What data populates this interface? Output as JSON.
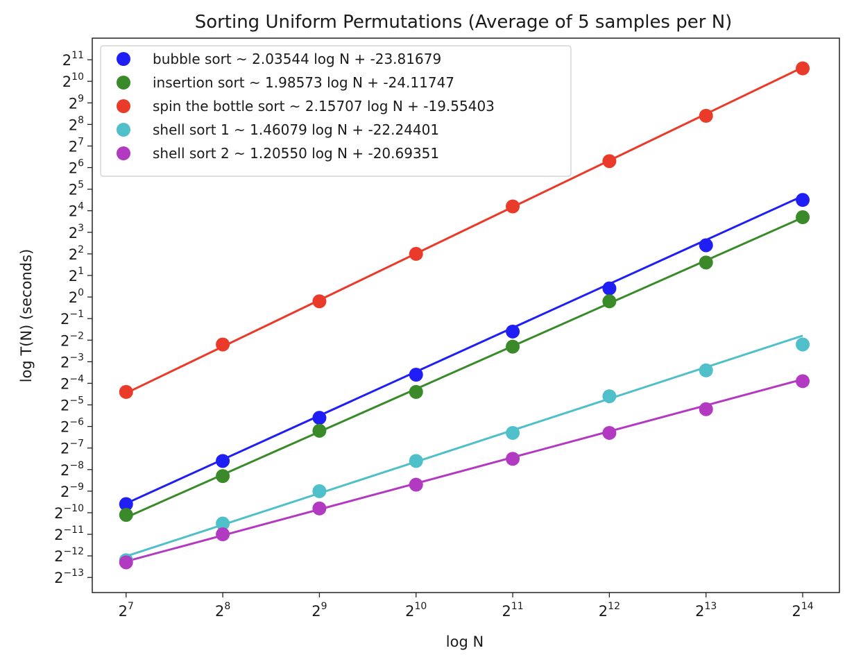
{
  "chart_data": {
    "type": "line",
    "title": "Sorting Uniform Permutations (Average of 5 samples per N)",
    "xlabel": "log N",
    "ylabel": "log T(N) (seconds)",
    "x_scale": "log2",
    "y_scale": "log2",
    "x_exponents": [
      7,
      8,
      9,
      10,
      11,
      12,
      13,
      14
    ],
    "x_tick_base": "2",
    "x_tick_exponents": [
      "7",
      "8",
      "9",
      "10",
      "11",
      "12",
      "13",
      "14"
    ],
    "y_tick_base": "2",
    "y_tick_exponents": [
      "11",
      "10",
      "9",
      "8",
      "7",
      "6",
      "5",
      "4",
      "3",
      "2",
      "1",
      "0",
      "−1",
      "−2",
      "−3",
      "−4",
      "−5",
      "−6",
      "−7",
      "−8",
      "−9",
      "−10",
      "−11",
      "−12",
      "−13"
    ],
    "y_tick_values": [
      11,
      10,
      9,
      8,
      7,
      6,
      5,
      4,
      3,
      2,
      1,
      0,
      -1,
      -2,
      -3,
      -4,
      -5,
      -6,
      -7,
      -8,
      -9,
      -10,
      -11,
      -12,
      -13
    ],
    "ylim_exponent": [
      -13.7,
      12.0
    ],
    "xlim_exponent": [
      6.65,
      14.38
    ],
    "grid": false,
    "legend_position": "upper-left",
    "series": [
      {
        "name": "bubble sort ~ 2.03544 log N + -23.81679",
        "color": "#1f1ff5",
        "slope": 2.03544,
        "intercept": -23.81679,
        "log_y": [
          -9.6,
          -7.6,
          -5.6,
          -3.6,
          -1.6,
          0.4,
          2.4,
          4.5
        ]
      },
      {
        "name": "insertion sort ~ 1.98573 log N + -24.11747",
        "color": "#3a8a2a",
        "slope": 1.98573,
        "intercept": -24.11747,
        "log_y": [
          -10.1,
          -8.3,
          -6.2,
          -4.4,
          -2.3,
          -0.2,
          1.6,
          3.7
        ]
      },
      {
        "name": "spin the bottle sort ~ 2.15707 log N + -19.55403",
        "color": "#ea3a2a",
        "slope": 2.15707,
        "intercept": -19.55403,
        "log_y": [
          -4.4,
          -2.2,
          -0.2,
          2.0,
          4.2,
          6.3,
          8.4,
          10.6
        ]
      },
      {
        "name": "shell sort 1 ~ 1.46079 log N + -22.24401",
        "color": "#4fbfc9",
        "slope": 1.46079,
        "intercept": -22.24401,
        "log_y": [
          -12.2,
          -10.5,
          -9.0,
          -7.6,
          -6.3,
          -4.6,
          -3.4,
          -2.2
        ]
      },
      {
        "name": "shell sort 2 ~ 1.20550 log N + -20.69351",
        "color": "#b23ac0",
        "slope": 1.2055,
        "intercept": -20.69351,
        "log_y": [
          -12.3,
          -11.0,
          -9.8,
          -8.7,
          -7.5,
          -6.3,
          -5.2,
          -3.9
        ]
      }
    ]
  }
}
